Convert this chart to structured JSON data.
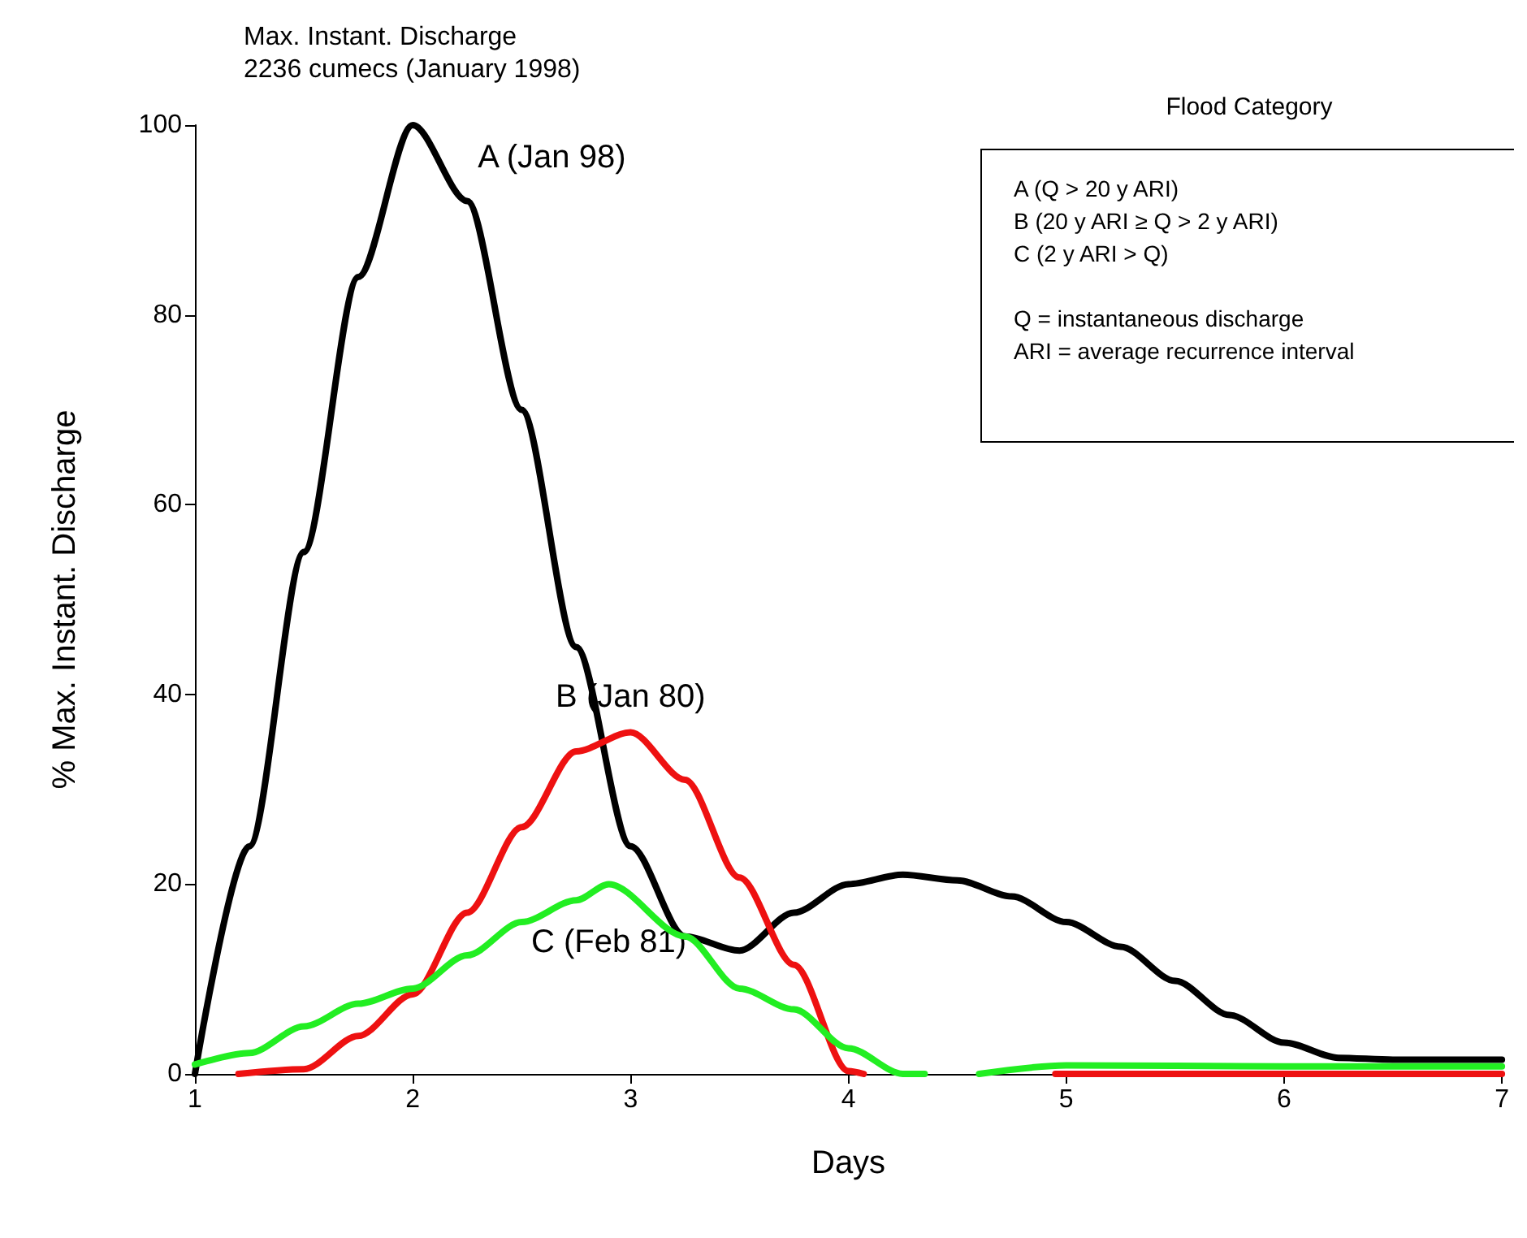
{
  "chart_data": {
    "type": "line",
    "title": "Max. Instant. Discharge",
    "subtitle": "2236 cumecs (January 1998)",
    "xlabel": "Days",
    "ylabel": "% Max. Instant. Discharge",
    "xlim": [
      1,
      7
    ],
    "xticks": [
      1,
      2,
      3,
      4,
      5,
      6,
      7
    ],
    "ylim": [
      0,
      100
    ],
    "yticks": [
      0,
      20,
      40,
      60,
      80,
      100
    ],
    "grid": false,
    "legend": false,
    "marker": "none",
    "line_style": "solid",
    "annotations": [
      "Flood Category",
      "A (Q > 20 y ARI)",
      "B (20 y ARI ≥ Q > 2 y ARI)",
      "C (2 y ARI > Q)",
      "Q = instantaneous discharge",
      "ARI = average recurrence interval"
    ],
    "series": [
      {
        "name": "A (Jan 98)",
        "color": "#000000",
        "x": [
          1,
          1.25,
          1.5,
          1.75,
          2,
          2.25,
          2.5,
          2.75,
          3,
          3.25,
          3.5,
          3.75,
          4,
          4.25,
          4.5,
          4.75,
          5,
          5.25,
          5.5,
          5.75,
          6,
          6.25,
          6.5,
          7
        ],
        "values": [
          0,
          24,
          55,
          84,
          100,
          92,
          70,
          45,
          24,
          14.5,
          13,
          17,
          20,
          21,
          20.4,
          18.7,
          16,
          13.4,
          9.8,
          6.2,
          3.3,
          1.7,
          1.5,
          1.5
        ]
      },
      {
        "name": "B (Jan 80)",
        "color": "#ee1111",
        "x": [
          1.2,
          1.5,
          1.75,
          2,
          2.25,
          2.5,
          2.75,
          3,
          3.25,
          3.5,
          3.75,
          4,
          4.07,
          4.5,
          4.95,
          6,
          7
        ],
        "values": [
          0,
          0.5,
          4,
          8.4,
          17,
          26,
          34,
          36,
          31,
          20.7,
          11.5,
          0.3,
          0,
          null,
          0,
          0,
          0
        ]
      },
      {
        "name": "C (Feb 81)",
        "color": "#22ee22",
        "x": [
          1,
          1.25,
          1.5,
          1.75,
          2,
          2.25,
          2.5,
          2.75,
          2.9,
          3.25,
          3.5,
          3.75,
          4,
          4.25,
          4.35,
          4.5,
          4.6,
          5,
          6,
          7
        ],
        "values": [
          1,
          2.2,
          5,
          7.4,
          9,
          12.5,
          16,
          18.3,
          20,
          14.5,
          9,
          6.8,
          2.7,
          0,
          0,
          null,
          0,
          0.9,
          0.8,
          0.8
        ]
      }
    ]
  }
}
